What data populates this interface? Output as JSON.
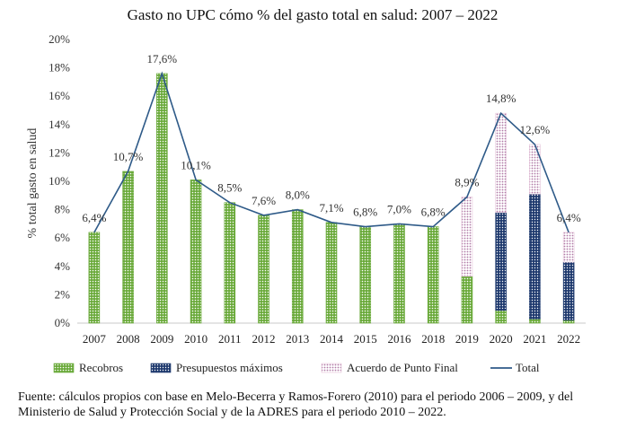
{
  "chart_data": {
    "type": "bar",
    "stacked": true,
    "title": "Gasto no UPC cómo % del gasto total en salud: 2007 – 2022",
    "ylabel": "% total gasto en salud",
    "xlabel": "",
    "ylim": [
      0,
      20
    ],
    "yticks": [
      0,
      2,
      4,
      6,
      8,
      10,
      12,
      14,
      16,
      18,
      20
    ],
    "ytick_labels": [
      "0%",
      "2%",
      "4%",
      "6%",
      "8%",
      "10%",
      "12%",
      "14%",
      "16%",
      "18%",
      "20%"
    ],
    "categories": [
      "2007",
      "2008",
      "2009",
      "2010",
      "2011",
      "2012",
      "2013",
      "2014",
      "2015",
      "2016",
      "2018",
      "2019",
      "2020",
      "2021",
      "2022"
    ],
    "series": [
      {
        "name": "Recobros",
        "kind": "bar",
        "color": "#6aaa3a",
        "pattern": "dots-green",
        "values": [
          6.4,
          10.7,
          17.6,
          10.1,
          8.5,
          7.6,
          8.0,
          7.1,
          6.8,
          7.0,
          6.8,
          3.3,
          0.9,
          0.3,
          0.2
        ]
      },
      {
        "name": "Presupuestos máximos",
        "kind": "bar",
        "color": "#1f3a6e",
        "pattern": "dots-navy",
        "values": [
          0,
          0,
          0,
          0,
          0,
          0,
          0,
          0,
          0,
          0,
          0,
          0,
          6.9,
          8.8,
          4.1
        ]
      },
      {
        "name": "Acuerdo de Punto Final",
        "kind": "bar",
        "color": "#e8c8dc",
        "pattern": "dots-pink",
        "values": [
          0,
          0,
          0,
          0,
          0,
          0,
          0,
          0,
          0,
          0,
          0,
          5.6,
          7.0,
          3.5,
          2.1
        ]
      },
      {
        "name": "Total",
        "kind": "line",
        "color": "#2e5a88",
        "values": [
          6.4,
          10.7,
          17.6,
          10.1,
          8.5,
          7.6,
          8.0,
          7.1,
          6.8,
          7.0,
          6.8,
          8.9,
          14.8,
          12.6,
          6.4
        ]
      }
    ],
    "data_labels": [
      "6,4%",
      "10,7%",
      "17,6%",
      "10,1%",
      "8,5%",
      "7,6%",
      "8,0%",
      "7,1%",
      "6,8%",
      "7,0%",
      "6,8%",
      "8,9%",
      "14,8%",
      "12,6%",
      "6,4%"
    ],
    "legend_position": "bottom",
    "grid": false
  },
  "source_note": "Fuente: cálculos propios con base en Melo-Becerra y Ramos-Forero (2010) para el periodo 2006 – 2009, y del Ministerio de Salud y Protección Social y de la ADRES para el periodo 2010 – 2022."
}
